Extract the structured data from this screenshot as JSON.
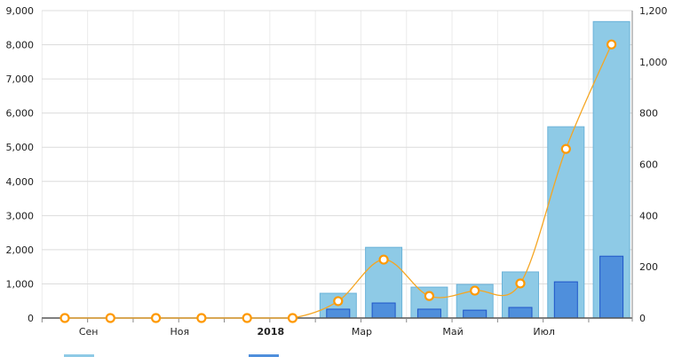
{
  "chart_data": {
    "type": "bar",
    "title": "",
    "x": [
      "2017-08",
      "2017-09",
      "2017-10",
      "2017-11",
      "2017-12",
      "2018-01",
      "2018-02",
      "2018-03",
      "2018-04",
      "2018-05",
      "2018-06",
      "2018-07",
      "2018-08"
    ],
    "x_tick_labels": [
      {
        "month_index": 1,
        "label": "Сен",
        "bold": false
      },
      {
        "month_index": 3,
        "label": "Ноя",
        "bold": false
      },
      {
        "month_index": 5,
        "label": "2018",
        "bold": true
      },
      {
        "month_index": 7,
        "label": "Мар",
        "bold": false
      },
      {
        "month_index": 9,
        "label": "Май",
        "bold": false
      },
      {
        "month_index": 11,
        "label": "Июл",
        "bold": false
      }
    ],
    "y_left": {
      "range": [
        0,
        9000
      ],
      "ticks": [
        0,
        1000,
        2000,
        3000,
        4000,
        5000,
        6000,
        7000,
        8000,
        9000
      ],
      "tick_labels": [
        "0",
        "1,000",
        "2,000",
        "3,000",
        "4,000",
        "5,000",
        "6,000",
        "7,000",
        "8,000",
        "9,000"
      ]
    },
    "y_right": {
      "range": [
        0,
        1200
      ],
      "ticks": [
        0,
        200,
        400,
        600,
        800,
        1000,
        1200
      ],
      "tick_labels": [
        "0",
        "200",
        "400",
        "600",
        "800",
        "1,000",
        "1,200"
      ]
    },
    "grid": true,
    "legend_placement": "bottom-left",
    "series": [
      {
        "name": "",
        "type": "bar",
        "axis": "left",
        "color": "#8ecae6",
        "values": [
          0,
          0,
          0,
          0,
          0,
          0,
          725,
          2070,
          905,
          985,
          1350,
          5600,
          8680
        ]
      },
      {
        "name": "",
        "type": "bar",
        "axis": "left",
        "color": "#4f8fdc",
        "values": [
          0,
          0,
          0,
          0,
          0,
          0,
          260,
          440,
          260,
          230,
          310,
          1060,
          1810
        ]
      },
      {
        "name": "",
        "type": "line",
        "axis": "right",
        "color": "#f5a623",
        "values": [
          0,
          0,
          0,
          0,
          0,
          0,
          66,
          228,
          86,
          107,
          135,
          660,
          1068
        ]
      }
    ]
  }
}
